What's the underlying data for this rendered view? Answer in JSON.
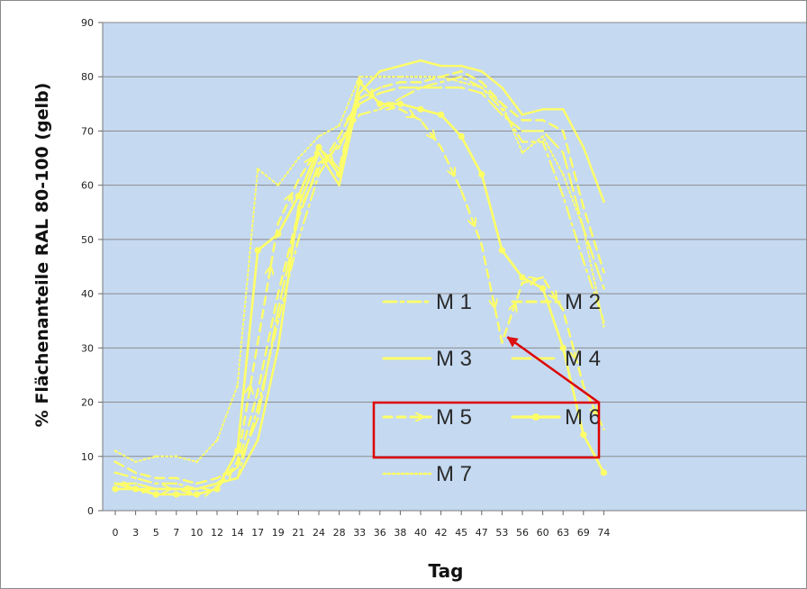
{
  "chart_data": {
    "type": "line",
    "title": "",
    "xlabel": "Tag",
    "ylabel": "% Flächenanteile  RAL 80-100 (gelb)",
    "ylim": [
      0,
      90
    ],
    "yticks": [
      0,
      10,
      20,
      30,
      40,
      50,
      60,
      70,
      80,
      90
    ],
    "categories": [
      "0",
      "3",
      "5",
      "7",
      "10",
      "12",
      "14",
      "17",
      "19",
      "21",
      "24",
      "28",
      "33",
      "36",
      "38",
      "40",
      "42",
      "45",
      "47",
      "53",
      "56",
      "60",
      "63",
      "69",
      "74"
    ],
    "grid": "horizontal",
    "background_color": "#c5d9f1",
    "line_color": "#ffff66",
    "legend_position": "center",
    "series": [
      {
        "name": "M 1",
        "style": "dashdot",
        "values": [
          7,
          6,
          5,
          5,
          4,
          5,
          6,
          19,
          35,
          50,
          62,
          68,
          73,
          74,
          76,
          78,
          79,
          80,
          78,
          74,
          68,
          68,
          58,
          46,
          35
        ]
      },
      {
        "name": "M 2",
        "style": "dashed",
        "values": [
          9,
          7,
          6,
          6,
          5,
          6,
          8,
          22,
          40,
          55,
          63,
          69,
          76,
          78,
          79,
          79,
          80,
          81,
          79,
          75,
          72,
          72,
          70,
          56,
          44
        ]
      },
      {
        "name": "M 3",
        "style": "solid",
        "values": [
          5,
          4,
          4,
          4,
          4,
          5,
          6,
          13,
          30,
          56,
          66,
          60,
          77,
          81,
          82,
          83,
          82,
          82,
          81,
          78,
          73,
          74,
          74,
          67,
          57
        ]
      },
      {
        "name": "M 4",
        "style": "longdash",
        "values": [
          5,
          5,
          4,
          4,
          4,
          5,
          8,
          17,
          37,
          54,
          64,
          67,
          75,
          77,
          78,
          78,
          78,
          78,
          77,
          73,
          70,
          70,
          66,
          52,
          41
        ]
      },
      {
        "name": "M 5",
        "style": "arrow-dashed",
        "values": [
          5,
          4,
          4,
          4,
          3,
          4,
          9,
          31,
          53,
          61,
          67,
          63,
          79,
          75,
          74,
          72,
          67,
          59,
          49,
          31,
          42,
          43,
          37,
          23,
          15
        ]
      },
      {
        "name": "M 6",
        "style": "solid-marker",
        "values": [
          4,
          4,
          3,
          3,
          3,
          4,
          11,
          48,
          51,
          58,
          67,
          62,
          79,
          75,
          75,
          74,
          73,
          69,
          62,
          48,
          43,
          41,
          30,
          14,
          7
        ]
      },
      {
        "name": "M 7",
        "style": "dotted",
        "values": [
          11,
          9,
          10,
          10,
          9,
          13,
          23,
          63,
          60,
          65,
          69,
          71,
          80,
          80,
          80,
          80,
          80,
          79,
          78,
          75,
          66,
          69,
          62,
          52,
          34
        ]
      }
    ],
    "legend": [
      {
        "label": "M 1",
        "style": "dashdot"
      },
      {
        "label": "M 2",
        "style": "dashed"
      },
      {
        "label": "M 3",
        "style": "solid"
      },
      {
        "label": "M 4",
        "style": "longdash"
      },
      {
        "label": "M 5",
        "style": "arrow-dashed"
      },
      {
        "label": "M 6",
        "style": "solid-marker"
      },
      {
        "label": "M 7",
        "style": "dotted"
      }
    ],
    "annotations": [
      {
        "type": "box",
        "around": [
          "M 5",
          "M 6"
        ],
        "color": "#dd0000"
      },
      {
        "type": "arrow",
        "target_category": "53",
        "target_value": 31,
        "color": "#dd0000"
      }
    ]
  }
}
